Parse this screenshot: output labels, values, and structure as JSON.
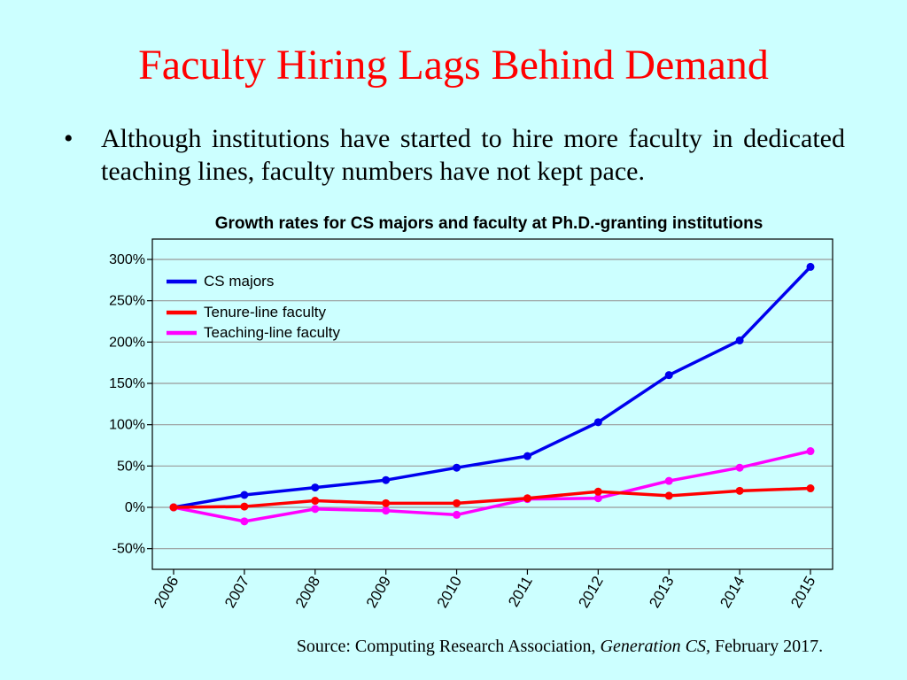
{
  "slide": {
    "title": "Faculty Hiring Lags Behind Demand",
    "bullet_symbol": "•",
    "bullet_text": "Although institutions have started to hire more faculty in dedicated teaching lines, faculty numbers have not kept pace.",
    "source_prefix": "Source: Computing Research Association, ",
    "source_title": "Generation CS,",
    "source_suffix": " February 2017."
  },
  "chart_data": {
    "type": "line",
    "title": "Growth rates for CS majors and faculty at Ph.D.-granting institutions",
    "x": [
      "2006",
      "2007",
      "2008",
      "2009",
      "2010",
      "2011",
      "2012",
      "2013",
      "2014",
      "2015"
    ],
    "ylim": [
      -75,
      300
    ],
    "yticks": [
      -50,
      0,
      50,
      100,
      150,
      200,
      250,
      300
    ],
    "ytick_labels": [
      "-50%",
      "0%",
      "50%",
      "100%",
      "150%",
      "200%",
      "250%",
      "300%"
    ],
    "grid": true,
    "legend_position": "top-left",
    "series": [
      {
        "name": "CS majors",
        "color": "#0000ee",
        "values": [
          0,
          15,
          24,
          33,
          48,
          62,
          103,
          160,
          202,
          291
        ]
      },
      {
        "name": "Tenure-line faculty",
        "color": "#ff0000",
        "values": [
          0,
          1,
          8,
          5,
          5,
          11,
          19,
          14,
          20,
          23
        ]
      },
      {
        "name": "Teaching-line faculty",
        "color": "#ff00ff",
        "values": [
          0,
          -17,
          -2,
          -4,
          -9,
          10,
          11,
          32,
          48,
          68
        ]
      }
    ]
  }
}
